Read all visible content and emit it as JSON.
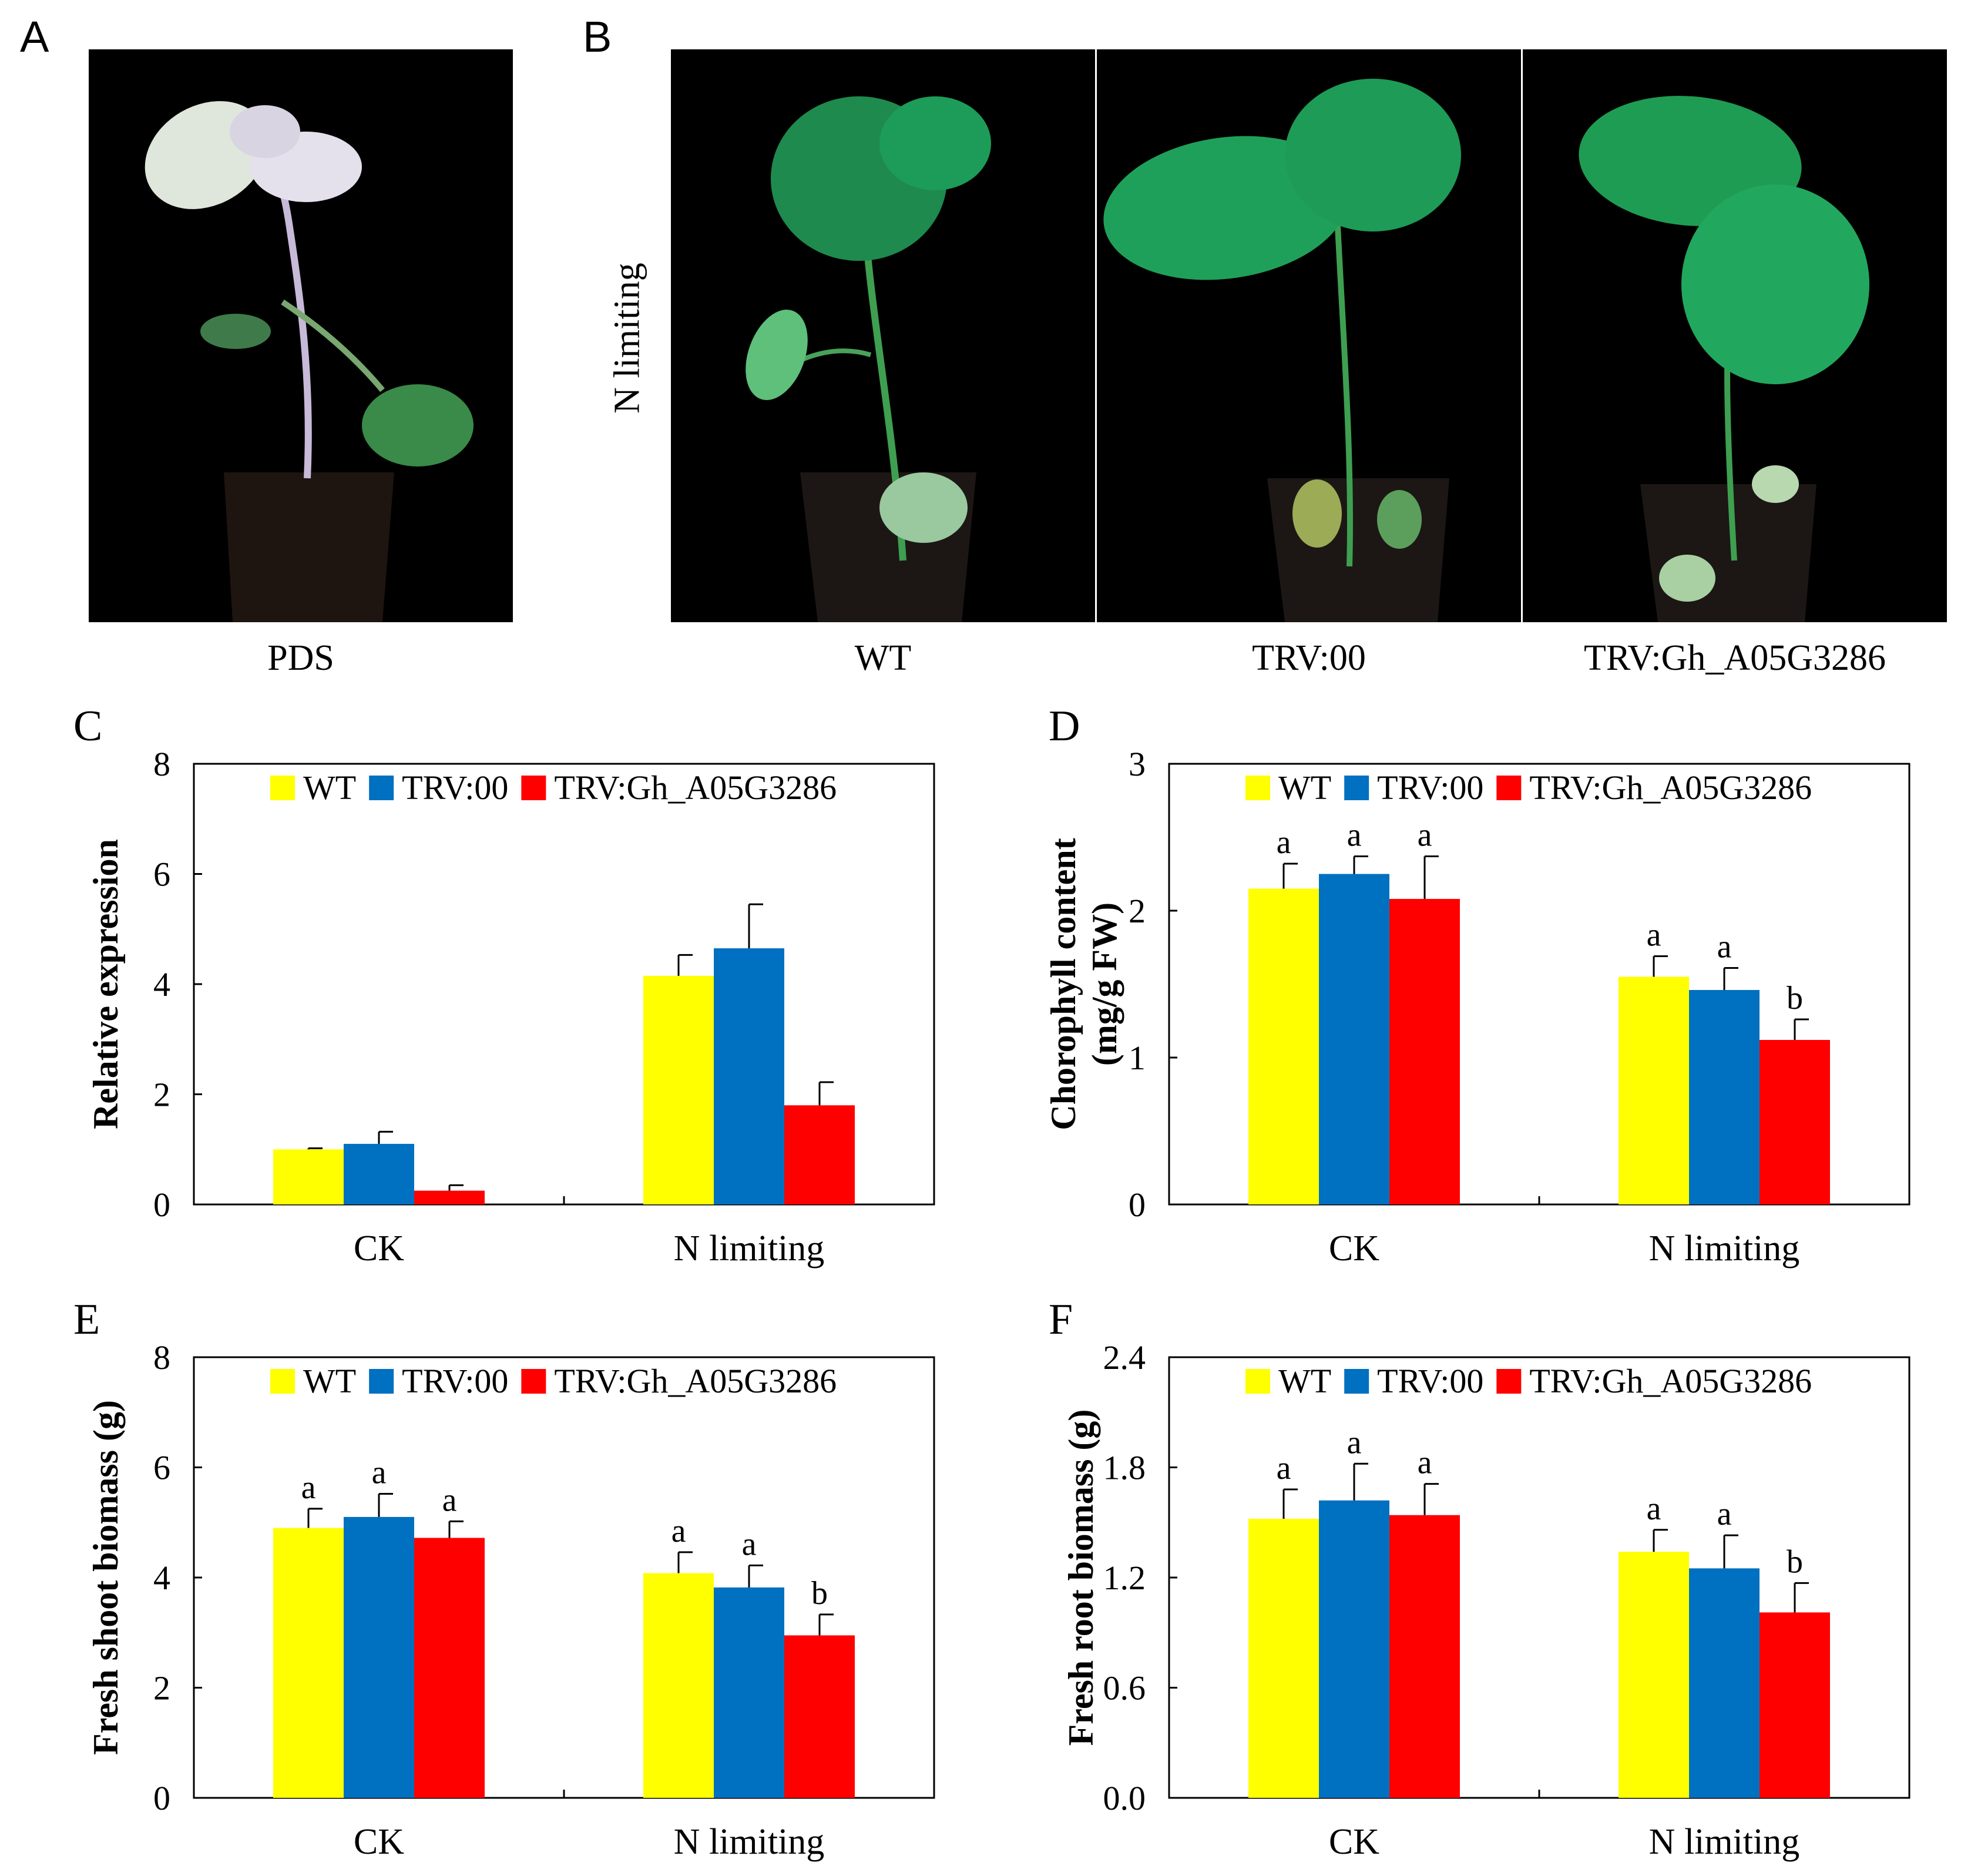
{
  "panels": {
    "a": {
      "letter": "A",
      "caption": "PDS"
    },
    "b": {
      "letter": "B",
      "side_label": "N limiting",
      "captions": [
        "WT",
        "TRV:00",
        "TRV:Gh_A05G3286"
      ]
    }
  },
  "colors": {
    "wt": "#ffff00",
    "trv00": "#0070c0",
    "trv_gh": "#ff0000"
  },
  "chart_data": [
    {
      "id": "C",
      "letter": "C",
      "type": "bar",
      "categories": [
        "CK",
        "N limiting"
      ],
      "series": [
        {
          "name": "WT",
          "values": [
            1.0,
            4.15
          ],
          "errors": [
            0.02,
            0.38
          ],
          "letters": [
            "",
            ""
          ]
        },
        {
          "name": "TRV:00",
          "values": [
            1.1,
            4.65
          ],
          "errors": [
            0.22,
            0.8
          ],
          "letters": [
            "",
            ""
          ]
        },
        {
          "name": "TRV:Gh_A05G3286",
          "values": [
            0.25,
            1.8
          ],
          "errors": [
            0.1,
            0.42
          ],
          "letters": [
            "",
            ""
          ]
        }
      ],
      "ylabel": "Relative expression",
      "ylabel2": "",
      "ylim": [
        0,
        8
      ],
      "yticks": [
        "0",
        "2",
        "4",
        "6",
        "8"
      ]
    },
    {
      "id": "D",
      "letter": "D",
      "type": "bar",
      "categories": [
        "CK",
        "N limiting"
      ],
      "series": [
        {
          "name": "WT",
          "values": [
            2.15,
            1.55
          ],
          "errors": [
            0.17,
            0.14
          ],
          "letters": [
            "a",
            "a"
          ]
        },
        {
          "name": "TRV:00",
          "values": [
            2.25,
            1.46
          ],
          "errors": [
            0.12,
            0.15
          ],
          "letters": [
            "a",
            "a"
          ]
        },
        {
          "name": "TRV:Gh_A05G3286",
          "values": [
            2.08,
            1.12
          ],
          "errors": [
            0.29,
            0.14
          ],
          "letters": [
            "a",
            "b"
          ]
        }
      ],
      "ylabel": "Chorophyll content",
      "ylabel2": "(mg/g FW)",
      "ylim": [
        0,
        3
      ],
      "yticks": [
        "0",
        "1",
        "2",
        "3"
      ]
    },
    {
      "id": "E",
      "letter": "E",
      "type": "bar",
      "categories": [
        "CK",
        "N limiting"
      ],
      "series": [
        {
          "name": "WT",
          "values": [
            4.9,
            4.08
          ],
          "errors": [
            0.35,
            0.38
          ],
          "letters": [
            "a",
            "a"
          ]
        },
        {
          "name": "TRV:00",
          "values": [
            5.1,
            3.82
          ],
          "errors": [
            0.42,
            0.4
          ],
          "letters": [
            "a",
            "a"
          ]
        },
        {
          "name": "TRV:Gh_A05G3286",
          "values": [
            4.72,
            2.95
          ],
          "errors": [
            0.3,
            0.38
          ],
          "letters": [
            "a",
            "b"
          ]
        }
      ],
      "ylabel": "Fresh shoot biomass (g)",
      "ylabel2": "",
      "ylim": [
        0,
        8
      ],
      "yticks": [
        "0",
        "2",
        "4",
        "6",
        "8"
      ]
    },
    {
      "id": "F",
      "letter": "F",
      "type": "bar",
      "categories": [
        "CK",
        "N limiting"
      ],
      "series": [
        {
          "name": "WT",
          "values": [
            1.52,
            1.34
          ],
          "errors": [
            0.16,
            0.12
          ],
          "letters": [
            "a",
            "a"
          ]
        },
        {
          "name": "TRV:00",
          "values": [
            1.62,
            1.25
          ],
          "errors": [
            0.2,
            0.18
          ],
          "letters": [
            "a",
            "a"
          ]
        },
        {
          "name": "TRV:Gh_A05G3286",
          "values": [
            1.54,
            1.01
          ],
          "errors": [
            0.17,
            0.16
          ],
          "letters": [
            "a",
            "b"
          ]
        }
      ],
      "ylabel": "Fresh root biomass (g)",
      "ylabel2": "",
      "ylim": [
        0,
        2.4
      ],
      "yticks": [
        "0.0",
        "0.6",
        "1.2",
        "1.8",
        "2.4"
      ]
    }
  ]
}
